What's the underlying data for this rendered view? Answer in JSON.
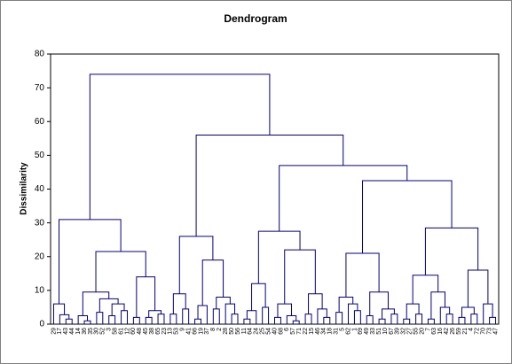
{
  "chart_data": {
    "type": "dendrogram",
    "title": "Dendrogram",
    "y_label": "Dissimilarity",
    "ylim": [
      0,
      80
    ],
    "yticks": [
      0,
      10,
      20,
      30,
      40,
      50,
      60,
      70,
      80
    ],
    "color": "#000080",
    "tree": {
      "height": 74,
      "children": [
        {
          "height": 31,
          "children": [
            {
              "height": 6,
              "children": [
                "29",
                {
                  "height": 2.8,
                  "children": [
                    "17",
                    {
                      "height": 1.5,
                      "children": [
                        "43",
                        "44"
                      ]
                    }
                  ]
                }
              ]
            },
            {
              "height": 21.5,
              "children": [
                {
                  "height": 9.5,
                  "children": [
                    {
                      "height": 2.5,
                      "children": [
                        "14",
                        {
                          "height": 1,
                          "children": [
                            "36",
                            "35"
                          ]
                        }
                      ]
                    },
                    {
                      "height": 7.5,
                      "children": [
                        {
                          "height": 3.5,
                          "children": [
                            "30",
                            "52"
                          ]
                        },
                        {
                          "height": 6,
                          "children": [
                            {
                              "height": 2.5,
                              "children": [
                                "3",
                                "58"
                              ]
                            },
                            {
                              "height": 4,
                              "children": [
                                "61",
                                "12"
                              ]
                            }
                          ]
                        }
                      ]
                    }
                  ]
                },
                {
                  "height": 14,
                  "children": [
                    {
                      "height": 2,
                      "children": [
                        "60",
                        "48"
                      ]
                    },
                    {
                      "height": 4,
                      "children": [
                        {
                          "height": 2,
                          "children": [
                            "45",
                            "38"
                          ]
                        },
                        {
                          "height": 3,
                          "children": [
                            "65",
                            "23"
                          ]
                        }
                      ]
                    }
                  ]
                }
              ]
            }
          ]
        },
        {
          "height": 56,
          "children": [
            {
              "height": 26,
              "children": [
                {
                  "height": 9,
                  "children": [
                    {
                      "height": 3,
                      "children": [
                        "13",
                        "53"
                      ]
                    },
                    {
                      "height": 4.5,
                      "children": [
                        "9",
                        "41"
                      ]
                    }
                  ]
                },
                {
                  "height": 19,
                  "children": [
                    {
                      "height": 5.5,
                      "children": [
                        {
                          "height": 1.5,
                          "children": [
                            "66",
                            "19"
                          ]
                        },
                        "37"
                      ]
                    },
                    {
                      "height": 8,
                      "children": [
                        {
                          "height": 4.5,
                          "children": [
                            "8",
                            "2"
                          ]
                        },
                        {
                          "height": 6,
                          "children": [
                            "28",
                            {
                              "height": 3,
                              "children": [
                                "50",
                                "56"
                              ]
                            }
                          ]
                        }
                      ]
                    }
                  ]
                }
              ]
            },
            {
              "height": 47,
              "children": [
                {
                  "height": 27.5,
                  "children": [
                    {
                      "height": 12,
                      "children": [
                        {
                          "height": 4,
                          "children": [
                            {
                              "height": 1.5,
                              "children": [
                                "11",
                                "64"
                              ]
                            },
                            "24"
                          ]
                        },
                        {
                          "height": 5,
                          "children": [
                            "25",
                            "54"
                          ]
                        }
                      ]
                    },
                    {
                      "height": 22,
                      "children": [
                        {
                          "height": 6,
                          "children": [
                            {
                              "height": 2,
                              "children": [
                                "40",
                                "68"
                              ]
                            },
                            {
                              "height": 2.5,
                              "children": [
                                "6",
                                {
                                  "height": 1,
                                  "children": [
                                    "57",
                                    "71"
                                  ]
                                }
                              ]
                            }
                          ]
                        },
                        {
                          "height": 9,
                          "children": [
                            {
                              "height": 3,
                              "children": [
                                "22",
                                "15"
                              ]
                            },
                            {
                              "height": 4.5,
                              "children": [
                                "46",
                                {
                                  "height": 2,
                                  "children": [
                                    "34",
                                    "18"
                                  ]
                                }
                              ]
                            }
                          ]
                        }
                      ]
                    }
                  ]
                },
                {
                  "height": 42.5,
                  "children": [
                    {
                      "height": 21,
                      "children": [
                        {
                          "height": 8,
                          "children": [
                            {
                              "height": 3.5,
                              "children": [
                                "31",
                                "5"
                              ]
                            },
                            {
                              "height": 6,
                              "children": [
                                "62",
                                {
                                  "height": 4,
                                  "children": [
                                    "1",
                                    "69"
                                  ]
                                }
                              ]
                            }
                          ]
                        },
                        {
                          "height": 9.5,
                          "children": [
                            {
                              "height": 2.5,
                              "children": [
                                "49",
                                "33"
                              ]
                            },
                            {
                              "height": 4.5,
                              "children": [
                                {
                                  "height": 1.5,
                                  "children": [
                                    "51",
                                    "10"
                                  ]
                                },
                                {
                                  "height": 3,
                                  "children": [
                                    "67",
                                    "39"
                                  ]
                                }
                              ]
                            }
                          ]
                        }
                      ]
                    },
                    {
                      "height": 28.5,
                      "children": [
                        {
                          "height": 14.5,
                          "children": [
                            {
                              "height": 6,
                              "children": [
                                {
                                  "height": 1.5,
                                  "children": [
                                    "32",
                                    "27"
                                  ]
                                },
                                {
                                  "height": 3,
                                  "children": [
                                    "55",
                                    "20"
                                  ]
                                }
                              ]
                            },
                            {
                              "height": 9.5,
                              "children": [
                                {
                                  "height": 1.5,
                                  "children": [
                                    "7",
                                    "63"
                                  ]
                                },
                                {
                                  "height": 5,
                                  "children": [
                                    "16",
                                    {
                                      "height": 3,
                                      "children": [
                                        "42",
                                        "26"
                                      ]
                                    }
                                  ]
                                }
                              ]
                            }
                          ]
                        },
                        {
                          "height": 16,
                          "children": [
                            {
                              "height": 5,
                              "children": [
                                {
                                  "height": 2,
                                  "children": [
                                    "59",
                                    "21"
                                  ]
                                },
                                {
                                  "height": 3,
                                  "children": [
                                    "4",
                                    "72"
                                  ]
                                }
                              ]
                            },
                            {
                              "height": 6,
                              "children": [
                                "70",
                                {
                                  "height": 2,
                                  "children": [
                                    "73",
                                    "47"
                                  ]
                                }
                              ]
                            }
                          ]
                        }
                      ]
                    }
                  ]
                }
              ]
            }
          ]
        }
      ]
    }
  }
}
